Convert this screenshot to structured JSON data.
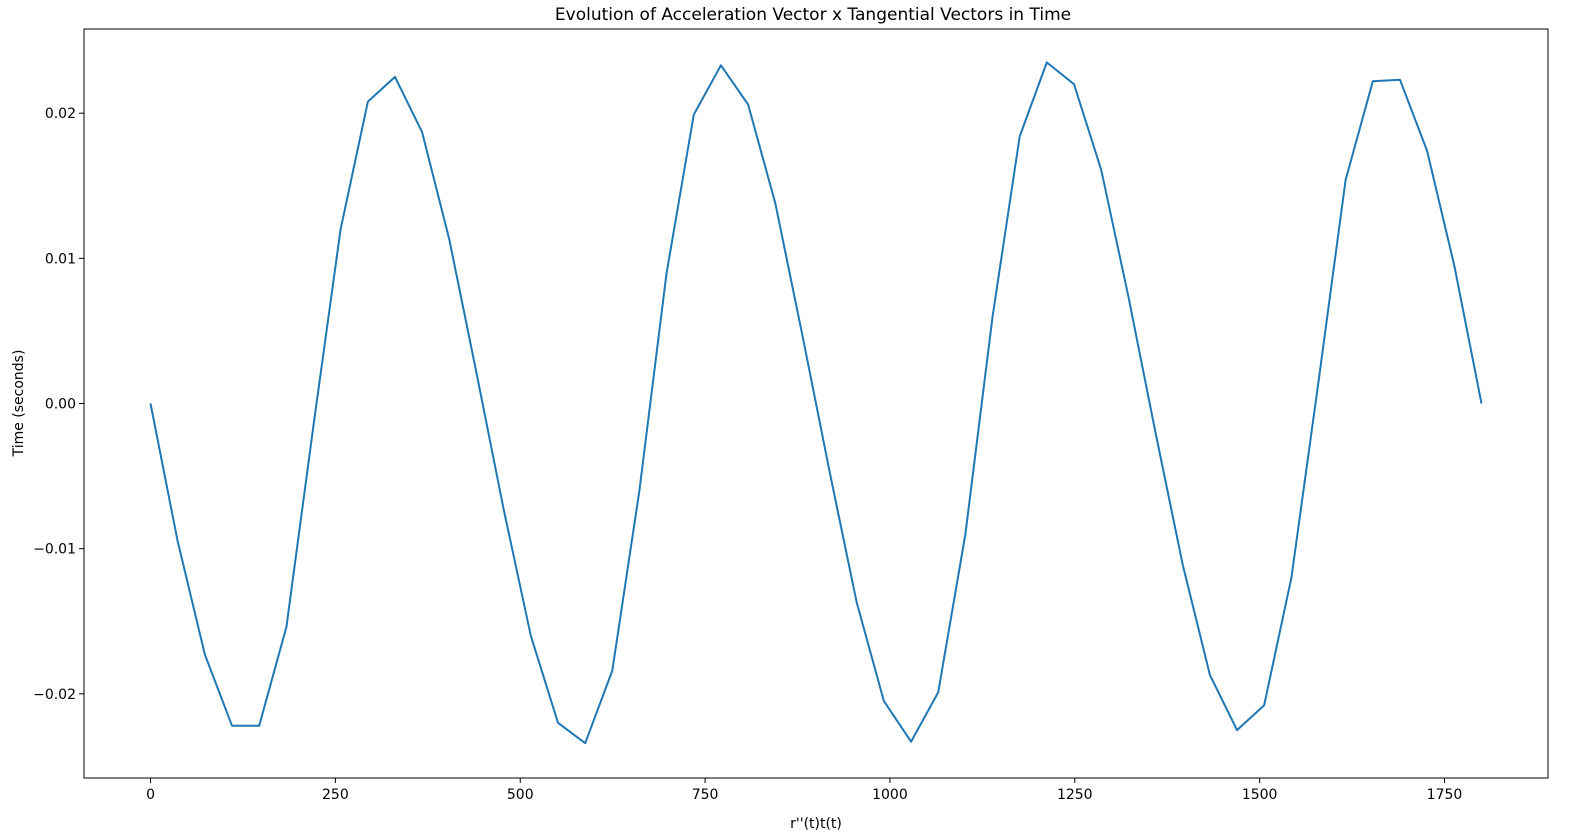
{
  "chart_data": {
    "type": "line",
    "title": "Evolution of Acceleration Vector x Tangential Vectors in Time",
    "xlabel": "r''(t)t(t)",
    "ylabel": "Time (seconds)",
    "xlim": [
      -90,
      1890
    ],
    "ylim": [
      -0.0258,
      0.0258
    ],
    "xticks": [
      0,
      250,
      500,
      750,
      1000,
      1250,
      1500,
      1750
    ],
    "xtick_labels": [
      "0",
      "250",
      "500",
      "750",
      "1000",
      "1250",
      "1500",
      "1750"
    ],
    "yticks": [
      -0.02,
      -0.01,
      0.0,
      0.01,
      0.02
    ],
    "ytick_labels": [
      "−0.02",
      "−0.01",
      "0.00",
      "0.01",
      "0.02"
    ],
    "grid": false,
    "series": [
      {
        "color": "#1f77b4",
        "x": [
          0,
          36.7,
          73.5,
          110.2,
          146.9,
          183.7,
          220.4,
          257.1,
          293.9,
          330.6,
          367.3,
          404.1,
          440.8,
          477.6,
          514.3,
          551.0,
          587.8,
          624.5,
          661.2,
          698.0,
          734.7,
          771.4,
          808.2,
          844.9,
          881.6,
          918.4,
          955.1,
          991.8,
          1028.6,
          1065.3,
          1102.0,
          1138.8,
          1175.5,
          1212.2,
          1249.0,
          1285.7,
          1322.4,
          1359.2,
          1395.9,
          1432.7,
          1469.4,
          1506.1,
          1542.9,
          1579.6,
          1616.3,
          1653.1,
          1689.8,
          1726.5,
          1763.3,
          1800.0
        ],
        "y": [
          0.0,
          -0.0095,
          -0.0173,
          -0.0222,
          -0.0222,
          -0.0154,
          -0.0015,
          0.012,
          0.0208,
          0.0225,
          0.0187,
          0.0113,
          0.0021,
          -0.0073,
          -0.016,
          -0.022,
          -0.0234,
          -0.0184,
          -0.006,
          0.009,
          0.0199,
          0.0233,
          0.0206,
          0.0138,
          0.0047,
          -0.0047,
          -0.0137,
          -0.0205,
          -0.0233,
          -0.0199,
          -0.009,
          0.006,
          0.0184,
          0.0235,
          0.022,
          0.0161,
          0.0074,
          -0.002,
          -0.0111,
          -0.0187,
          -0.0225,
          -0.0208,
          -0.012,
          0.0015,
          0.0154,
          0.0222,
          0.0223,
          0.0174,
          0.0095,
          0.0
        ]
      }
    ]
  }
}
